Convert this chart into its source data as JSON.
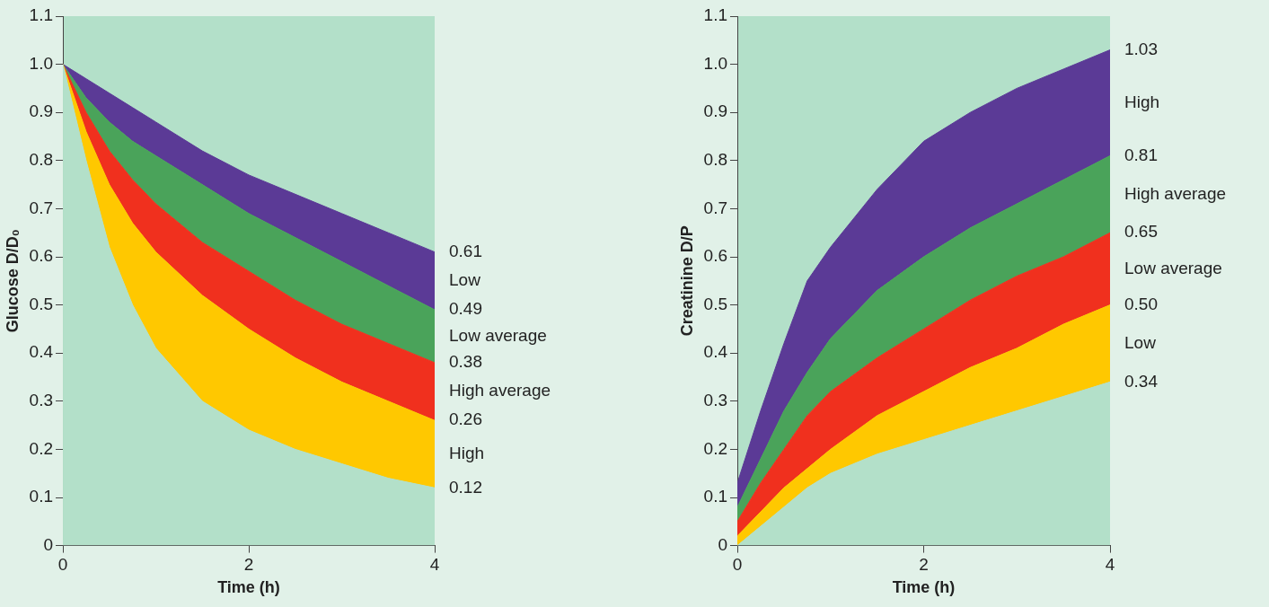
{
  "chart_data": [
    {
      "type": "area",
      "stacked": true,
      "xlabel": "Time (h)",
      "ylabel": "Glucose D/D₀",
      "x": [
        0,
        0.25,
        0.5,
        0.75,
        1,
        1.5,
        2,
        2.5,
        3,
        3.5,
        4
      ],
      "xlim": [
        0,
        4
      ],
      "xticks": [
        0,
        2,
        4
      ],
      "ylim": [
        0,
        1.1
      ],
      "yticks": [
        0,
        {
          "value": 0.1,
          "label": "0.1"
        },
        {
          "value": 0.2,
          "label": "0.2"
        },
        {
          "value": 0.3,
          "label": "0.3"
        },
        {
          "value": 0.4,
          "label": "0.4"
        },
        {
          "value": 0.5,
          "label": "0.5"
        },
        {
          "value": 0.6,
          "label": "0.6"
        },
        {
          "value": 0.7,
          "label": "0.7"
        },
        {
          "value": 0.8,
          "label": "0.8"
        },
        {
          "value": 0.9,
          "label": "0.9"
        },
        {
          "value": 1,
          "label": "1.0"
        },
        {
          "value": 1.1,
          "label": "1.1"
        }
      ],
      "grid": false,
      "legend": false,
      "series": [
        {
          "color": "#b3e0c9",
          "values": [
            1.0,
            0.8,
            0.62,
            0.5,
            0.41,
            0.3,
            0.24,
            0.2,
            0.17,
            0.14,
            0.12
          ]
        },
        {
          "name": "High",
          "color": "#ffc800",
          "values": [
            0,
            0.06,
            0.13,
            0.17,
            0.2,
            0.22,
            0.21,
            0.19,
            0.17,
            0.16,
            0.14
          ]
        },
        {
          "name": "High average",
          "color": "#f0301e",
          "values": [
            0,
            0.04,
            0.07,
            0.09,
            0.1,
            0.11,
            0.12,
            0.12,
            0.12,
            0.12,
            0.12
          ]
        },
        {
          "name": "Low average",
          "color": "#4aa35a",
          "values": [
            0,
            0.03,
            0.06,
            0.08,
            0.1,
            0.12,
            0.12,
            0.13,
            0.13,
            0.12,
            0.11
          ]
        },
        {
          "name": "Low",
          "color": "#5b3a96",
          "values": [
            0,
            0.04,
            0.06,
            0.07,
            0.07,
            0.07,
            0.08,
            0.09,
            0.1,
            0.11,
            0.12
          ]
        }
      ],
      "annotations": [
        "0.61",
        "0.49",
        "0.38",
        "0.26",
        "0.12"
      ]
    },
    {
      "type": "area",
      "stacked": true,
      "xlabel": "Time (h)",
      "ylabel": "Creatinine D/P",
      "x": [
        0,
        0.25,
        0.5,
        0.75,
        1,
        1.5,
        2,
        2.5,
        3,
        3.5,
        4
      ],
      "xlim": [
        0,
        4
      ],
      "xticks": [
        0,
        2,
        4
      ],
      "ylim": [
        0,
        1.1
      ],
      "yticks": [
        0,
        {
          "value": 0.1,
          "label": "0.1"
        },
        {
          "value": 0.2,
          "label": "0.2"
        },
        {
          "value": 0.3,
          "label": "0.3"
        },
        {
          "value": 0.4,
          "label": "0.4"
        },
        {
          "value": 0.5,
          "label": "0.5"
        },
        {
          "value": 0.6,
          "label": "0.6"
        },
        {
          "value": 0.7,
          "label": "0.7"
        },
        {
          "value": 0.8,
          "label": "0.8"
        },
        {
          "value": 0.9,
          "label": "0.9"
        },
        {
          "value": 1,
          "label": "1.0"
        },
        {
          "value": 1.1,
          "label": "1.1"
        }
      ],
      "grid": false,
      "legend": false,
      "series": [
        {
          "color": "#b3e0c9",
          "values": [
            0,
            0.04,
            0.08,
            0.12,
            0.15,
            0.19,
            0.22,
            0.25,
            0.28,
            0.31,
            0.34
          ]
        },
        {
          "name": "Low",
          "color": "#ffc800",
          "values": [
            0.02,
            0.03,
            0.04,
            0.04,
            0.05,
            0.08,
            0.1,
            0.12,
            0.13,
            0.15,
            0.16
          ]
        },
        {
          "name": "Low average",
          "color": "#f0301e",
          "values": [
            0.03,
            0.06,
            0.08,
            0.11,
            0.12,
            0.12,
            0.13,
            0.14,
            0.15,
            0.14,
            0.15
          ]
        },
        {
          "name": "High average",
          "color": "#4aa35a",
          "values": [
            0.03,
            0.05,
            0.08,
            0.09,
            0.11,
            0.14,
            0.15,
            0.15,
            0.15,
            0.16,
            0.16
          ]
        },
        {
          "name": "High",
          "color": "#5b3a96",
          "values": [
            0.05,
            0.1,
            0.14,
            0.19,
            0.19,
            0.21,
            0.24,
            0.24,
            0.24,
            0.23,
            0.22
          ]
        }
      ],
      "annotations": [
        "1.03",
        "0.81",
        "0.65",
        "0.50",
        "0.34"
      ]
    }
  ]
}
